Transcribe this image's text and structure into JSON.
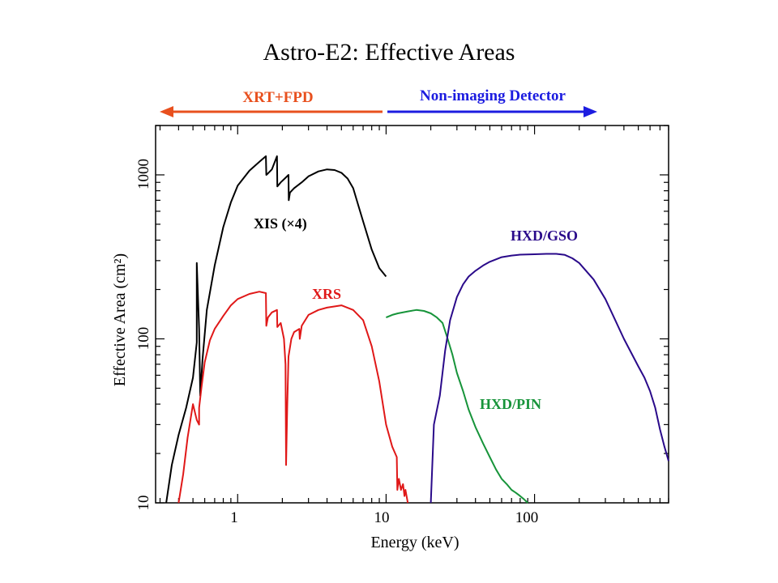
{
  "chart_data": {
    "type": "line",
    "title": "Astro-E2: Effective Areas",
    "xlabel": "Energy (keV)",
    "ylabel": "Effective Area (cm²)",
    "xscale": "log",
    "yscale": "log",
    "xlim": [
      0.28,
      800
    ],
    "ylim": [
      10,
      2000
    ],
    "xticks": [
      "1",
      "10",
      "100"
    ],
    "yticks": [
      "10",
      "100",
      "1000"
    ],
    "grid": false,
    "ranges": [
      {
        "label": "XRT+FPD",
        "direction": "left",
        "color": "#e8501e"
      },
      {
        "label": "Non-imaging Detector",
        "direction": "right",
        "color": "#1c1ce0"
      }
    ],
    "series": [
      {
        "name": "XIS (×4)",
        "color": "#000000",
        "x": [
          0.33,
          0.36,
          0.4,
          0.45,
          0.5,
          0.53,
          0.53,
          0.55,
          0.56,
          0.58,
          0.62,
          0.7,
          0.8,
          0.9,
          1.0,
          1.2,
          1.4,
          1.55,
          1.56,
          1.6,
          1.7,
          1.84,
          1.85,
          1.95,
          2.1,
          2.2,
          2.21,
          2.25,
          2.4,
          2.7,
          3.0,
          3.5,
          4.0,
          4.5,
          5.0,
          5.5,
          6.0,
          6.5,
          7.0,
          8.0,
          9.0,
          10.0
        ],
        "values": [
          10,
          17,
          26,
          38,
          58,
          95,
          290,
          115,
          45,
          75,
          150,
          280,
          480,
          680,
          860,
          1060,
          1200,
          1300,
          1000,
          1020,
          1080,
          1300,
          850,
          900,
          960,
          1000,
          700,
          780,
          830,
          900,
          980,
          1050,
          1080,
          1070,
          1030,
          950,
          830,
          650,
          520,
          350,
          270,
          240
        ]
      },
      {
        "name": "XRS",
        "color": "#e01818",
        "x": [
          0.4,
          0.43,
          0.46,
          0.5,
          0.53,
          0.55,
          0.55,
          0.57,
          0.6,
          0.65,
          0.7,
          0.8,
          0.9,
          1.0,
          1.2,
          1.4,
          1.55,
          1.56,
          1.6,
          1.7,
          1.84,
          1.85,
          1.95,
          2.05,
          2.1,
          2.12,
          2.16,
          2.2,
          2.3,
          2.4,
          2.6,
          2.62,
          2.7,
          3.0,
          3.5,
          4.0,
          5.0,
          6.0,
          7.0,
          8.0,
          9.0,
          10.0,
          11.0,
          11.8,
          11.9,
          12.2,
          12.6,
          13.0,
          13.3,
          13.5,
          14.0
        ],
        "values": [
          10,
          15,
          25,
          40,
          32,
          30,
          38,
          50,
          72,
          98,
          115,
          138,
          160,
          175,
          188,
          194,
          190,
          120,
          135,
          145,
          150,
          118,
          125,
          100,
          70,
          17,
          40,
          78,
          100,
          110,
          115,
          100,
          120,
          140,
          150,
          155,
          160,
          150,
          130,
          90,
          55,
          30,
          22,
          19,
          12,
          14,
          12,
          13,
          11,
          12,
          10
        ]
      },
      {
        "name": "HXD/PIN",
        "color": "#17943a",
        "x": [
          10.0,
          11.0,
          12.0,
          14.0,
          16.0,
          18.0,
          20.0,
          22.0,
          24.0,
          26.0,
          28.0,
          30.0,
          33.0,
          36.0,
          40.0,
          45.0,
          50.0,
          55.0,
          60.0,
          65.0,
          70.0,
          75.0,
          80.0,
          85.0,
          90.0
        ],
        "values": [
          135,
          140,
          143,
          147,
          150,
          148,
          143,
          135,
          125,
          100,
          80,
          62,
          48,
          37,
          29,
          23,
          19,
          16,
          14,
          13,
          12,
          11.5,
          11,
          10.5,
          10
        ]
      },
      {
        "name": "HXD/GSO",
        "color": "#2a0a8a",
        "x": [
          20.0,
          21.0,
          23.0,
          25.0,
          27.0,
          30.0,
          33.0,
          36.0,
          40.0,
          45.0,
          50.0,
          60.0,
          70.0,
          80.0,
          100.0,
          120.0,
          140.0,
          160.0,
          180.0,
          200.0,
          250.0,
          300.0,
          350.0,
          400.0,
          500.0,
          550.0,
          600.0,
          650.0,
          700.0,
          750.0,
          800.0
        ],
        "values": [
          10,
          30,
          45,
          85,
          130,
          180,
          215,
          240,
          260,
          280,
          295,
          315,
          322,
          326,
          328,
          330,
          330,
          325,
          310,
          290,
          230,
          175,
          130,
          100,
          68,
          58,
          48,
          38,
          28,
          22,
          18
        ]
      }
    ]
  }
}
